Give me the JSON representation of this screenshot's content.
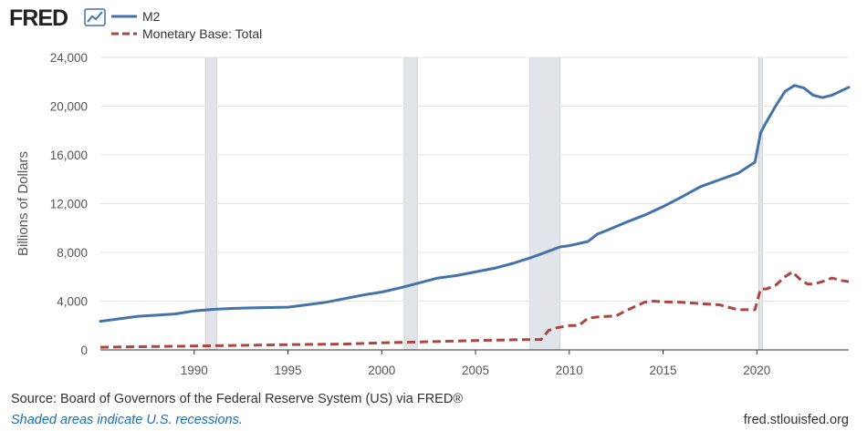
{
  "logo": {
    "text": "FRED"
  },
  "footer": {
    "source": "Source: Board of Governors of the Federal Reserve System (US) via FRED®",
    "note": "Shaded areas indicate U.S. recessions.",
    "site": "fred.stlouisfed.org"
  },
  "chart_data": {
    "type": "line",
    "title": "",
    "xlabel": "",
    "ylabel": "Billions of Dollars",
    "xlim": [
      1985.0,
      2024.9
    ],
    "ylim": [
      0,
      24000
    ],
    "grid": true,
    "legend": "top-left",
    "x_ticks": [
      1990,
      1995,
      2000,
      2005,
      2010,
      2015,
      2020
    ],
    "x_tick_labels": [
      "1990",
      "1995",
      "2000",
      "2005",
      "2010",
      "2015",
      "2020"
    ],
    "y_ticks": [
      0,
      4000,
      8000,
      12000,
      16000,
      20000,
      24000
    ],
    "y_tick_labels": [
      "0",
      "4,000",
      "8,000",
      "12,000",
      "16,000",
      "20,000",
      "24,000"
    ],
    "recessions": [
      [
        1990.6,
        1991.2
      ],
      [
        2001.2,
        2001.9
      ],
      [
        2007.9,
        2009.5
      ],
      [
        2020.1,
        2020.3
      ]
    ],
    "series": [
      {
        "name": "M2",
        "color": "#4572a7",
        "style": "solid",
        "x": [
          1985.0,
          1986.0,
          1987.0,
          1988.0,
          1989.0,
          1990.0,
          1991.0,
          1992.0,
          1993.0,
          1994.0,
          1995.0,
          1996.0,
          1997.0,
          1998.0,
          1999.0,
          2000.0,
          2001.0,
          2002.0,
          2003.0,
          2004.0,
          2005.0,
          2006.0,
          2007.0,
          2008.0,
          2008.9,
          2009.5,
          2010.0,
          2011.0,
          2011.5,
          2012.0,
          2013.0,
          2014.0,
          2015.0,
          2016.0,
          2017.0,
          2018.0,
          2019.0,
          2019.9,
          2020.2,
          2020.4,
          2021.0,
          2021.5,
          2022.0,
          2022.5,
          2023.0,
          2023.5,
          2024.0,
          2024.9
        ],
        "values": [
          2350,
          2550,
          2760,
          2850,
          2950,
          3200,
          3330,
          3400,
          3450,
          3480,
          3510,
          3700,
          3900,
          4200,
          4500,
          4750,
          5100,
          5500,
          5900,
          6100,
          6400,
          6700,
          7100,
          7600,
          8100,
          8450,
          8550,
          8900,
          9500,
          9800,
          10450,
          11050,
          11750,
          12550,
          13400,
          13950,
          14500,
          15400,
          17800,
          18400,
          20000,
          21200,
          21700,
          21500,
          20900,
          20700,
          20900,
          21550
        ]
      },
      {
        "name": "Monetary Base: Total",
        "color": "#aa4643",
        "style": "dashed",
        "x": [
          1985.0,
          1987.0,
          1990.0,
          1993.0,
          1995.0,
          1998.0,
          2000.0,
          2002.0,
          2005.0,
          2007.0,
          2008.5,
          2008.9,
          2009.3,
          2010.0,
          2010.5,
          2011.0,
          2011.5,
          2012.0,
          2012.5,
          2013.0,
          2014.0,
          2014.5,
          2015.0,
          2016.0,
          2017.0,
          2018.0,
          2019.0,
          2019.9,
          2020.2,
          2020.5,
          2021.0,
          2021.5,
          2021.9,
          2022.3,
          2022.7,
          2023.0,
          2023.5,
          2024.0,
          2024.5,
          2024.9
        ],
        "values": [
          220,
          260,
          320,
          380,
          430,
          480,
          580,
          650,
          770,
          830,
          850,
          1600,
          1800,
          2000,
          2000,
          2600,
          2700,
          2750,
          2800,
          3200,
          3900,
          4000,
          3950,
          3900,
          3800,
          3700,
          3300,
          3300,
          5000,
          5000,
          5300,
          6000,
          6400,
          5800,
          5400,
          5400,
          5600,
          5900,
          5700,
          5600
        ]
      }
    ]
  }
}
